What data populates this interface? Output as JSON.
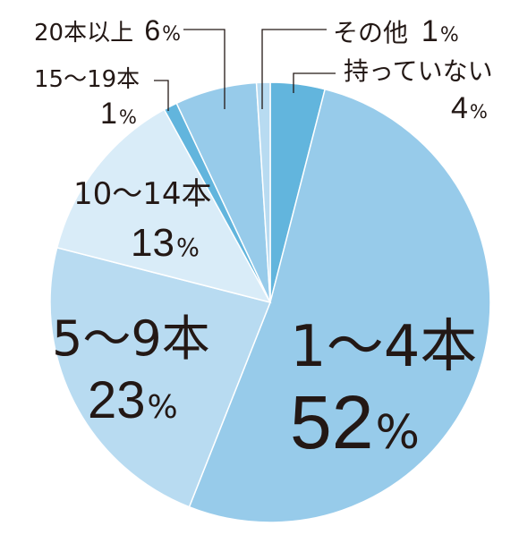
{
  "chart_data": {
    "type": "pie",
    "title": "",
    "categories": [
      "持っていない",
      "1〜4本",
      "5〜9本",
      "10〜14本",
      "15〜19本",
      "20本以上",
      "その他"
    ],
    "values": [
      4,
      52,
      23,
      13,
      1,
      6,
      1
    ],
    "unit": "%",
    "colors": [
      "#62b5dd",
      "#97cbea",
      "#b8dbf1",
      "#d9ecf8",
      "#62b5dd",
      "#97cbea",
      "#b8dbf1"
    ],
    "slices": [
      {
        "category": "持っていない",
        "value": "4",
        "unit": "%"
      },
      {
        "category": "1〜4本",
        "value": "52",
        "unit": "%"
      },
      {
        "category": "5〜9本",
        "value": "23",
        "unit": "%"
      },
      {
        "category": "10〜14本",
        "value": "13",
        "unit": "%"
      },
      {
        "category": "15〜19本",
        "value": "1",
        "unit": "%"
      },
      {
        "category": "20本以上",
        "value": "6",
        "unit": "%"
      },
      {
        "category": "その他",
        "value": "1",
        "unit": "%"
      }
    ]
  }
}
